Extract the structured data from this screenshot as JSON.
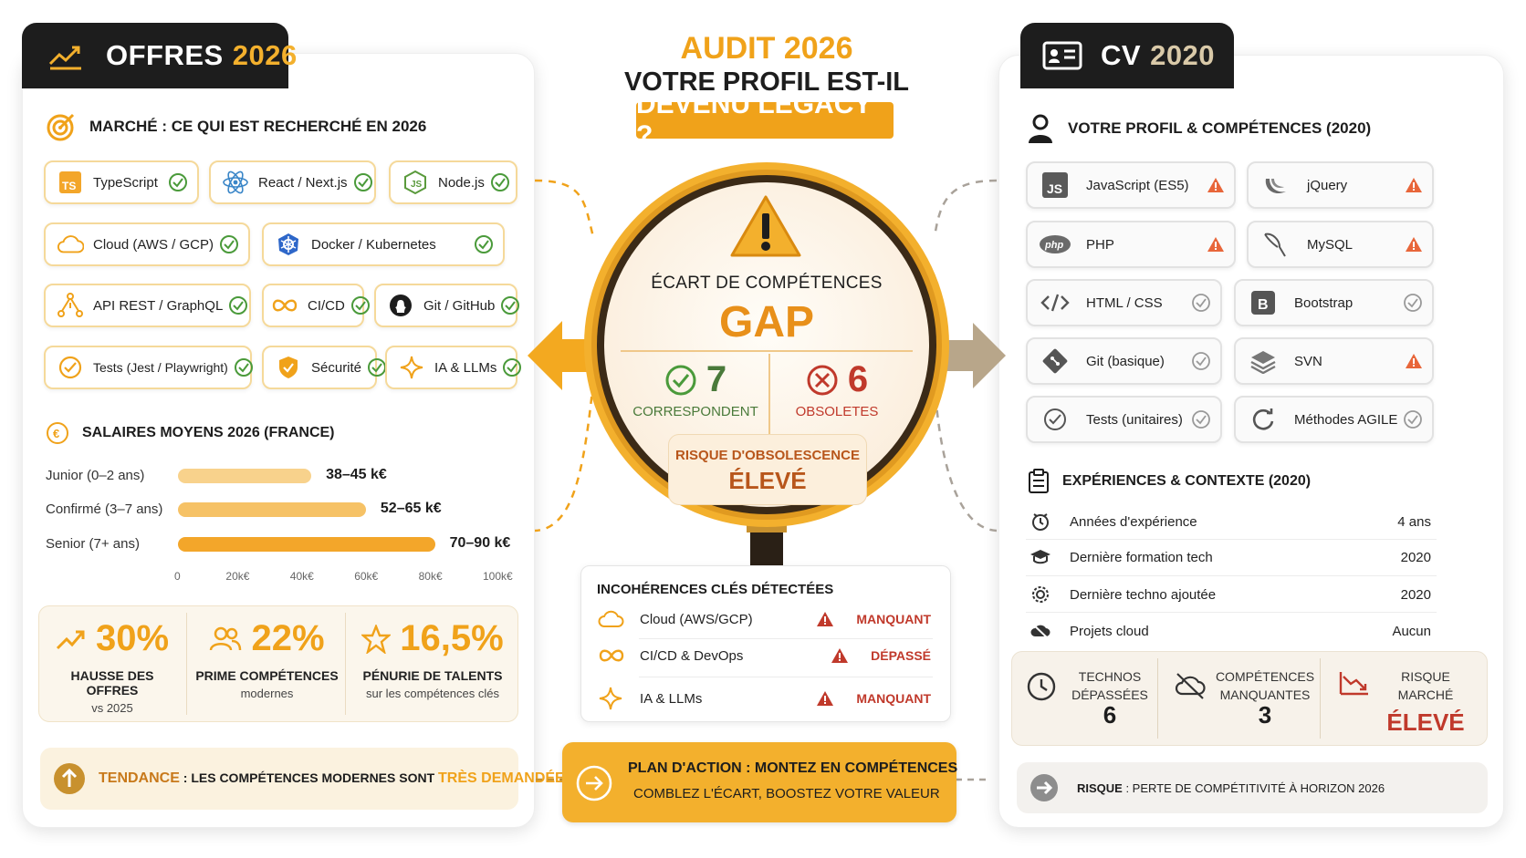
{
  "center": {
    "title_line1": "AUDIT 2026",
    "title_line2": "VOTRE PROFIL EST-IL",
    "title_line3": "DEVENU LEGACY ?",
    "gap_label": "ÉCART DE COMPÉTENCES",
    "gap_word": "GAP",
    "match_count": "7",
    "match_label": "CORRESPONDENT",
    "obsolete_count": "6",
    "obsolete_label": "OBSOLETES",
    "risk_label": "RISQUE D'OBSOLESCENCE",
    "risk_value": "ÉLEVÉ",
    "incoherences_title": "INCOHÉRENCES CLÉS DÉTECTÉES",
    "incoherences": [
      {
        "name": "Cloud (AWS/GCP)",
        "status": "MANQUANT",
        "icon": "cloud-icon"
      },
      {
        "name": "CI/CD & DevOps",
        "status": "DÉPASSÉ",
        "icon": "infinity-icon"
      },
      {
        "name": "IA & LLMs",
        "status": "MANQUANT",
        "icon": "sparkle-icon"
      }
    ],
    "plan_line1": "PLAN D'ACTION : MONTEZ EN COMPÉTENCES",
    "plan_line2": "COMBLEZ L'ÉCART, BOOSTEZ VOTRE VALEUR"
  },
  "left": {
    "tab_word": "OFFRES",
    "tab_year": "2026",
    "market_title": "MARCHÉ : CE QUI EST RECHERCHÉ EN 2026",
    "skills": [
      {
        "label": "TypeScript",
        "icon": "typescript-icon"
      },
      {
        "label": "React / Next.js",
        "icon": "react-icon"
      },
      {
        "label": "Node.js",
        "icon": "nodejs-icon"
      },
      {
        "label": "Cloud (AWS / GCP)",
        "icon": "cloud-icon"
      },
      {
        "label": "Docker / Kubernetes",
        "icon": "kubernetes-icon"
      },
      {
        "label": "API REST / GraphQL",
        "icon": "graphql-icon"
      },
      {
        "label": "CI/CD",
        "icon": "infinity-icon"
      },
      {
        "label": "Git / GitHub",
        "icon": "github-icon"
      },
      {
        "label": "Tests (Jest / Playwright)",
        "icon": "check-circle-icon"
      },
      {
        "label": "Sécurité",
        "icon": "shield-icon"
      },
      {
        "label": "IA & LLMs",
        "icon": "sparkle-icon"
      }
    ],
    "salary_title": "SALAIRES MOYENS 2026 (FRANCE)",
    "salaries": [
      {
        "label": "Junior (0–2 ans)",
        "value": "38–45 k€",
        "mid": 41.5
      },
      {
        "label": "Confirmé (3–7 ans)",
        "value": "52–65 k€",
        "mid": 58.5
      },
      {
        "label": "Senior (7+ ans)",
        "value": "70–90 k€",
        "mid": 80
      }
    ],
    "ticks": [
      "0",
      "20k€",
      "40k€",
      "60k€",
      "80k€",
      "100k€"
    ],
    "stats": [
      {
        "big": "30%",
        "label": "HAUSSE DES OFFRES",
        "sub": "vs 2025",
        "icon": "trend-up-icon"
      },
      {
        "big": "22%",
        "label": "PRIME COMPÉTENCES",
        "sub": "modernes",
        "icon": "people-icon"
      },
      {
        "big": "16,5%",
        "label": "PÉNURIE DE TALENTS",
        "sub": "sur les compétences clés",
        "icon": "star-icon"
      }
    ],
    "trend_prefix": "TENDANCE",
    "trend_text": " : LES COMPÉTENCES MODERNES SONT ",
    "trend_highlight": "TRÈS DEMANDÉES"
  },
  "right": {
    "tab_word": "CV",
    "tab_year": "2020",
    "profile_title": "VOTRE PROFIL & COMPÉTENCES (2020)",
    "skills": [
      {
        "label": "JavaScript (ES5)",
        "status": "warning",
        "icon": "js-icon"
      },
      {
        "label": "jQuery",
        "status": "warning",
        "icon": "jquery-icon"
      },
      {
        "label": "PHP",
        "status": "warning",
        "icon": "php-icon"
      },
      {
        "label": "MySQL",
        "status": "warning",
        "icon": "mysql-icon"
      },
      {
        "label": "HTML / CSS",
        "status": "ok",
        "icon": "code-icon"
      },
      {
        "label": "Bootstrap",
        "status": "ok",
        "icon": "bootstrap-icon"
      },
      {
        "label": "Git (basique)",
        "status": "ok",
        "icon": "git-icon"
      },
      {
        "label": "SVN",
        "status": "warning",
        "icon": "layers-icon"
      },
      {
        "label": "Tests (unitaires)",
        "status": "ok",
        "icon": "check-circle-icon"
      },
      {
        "label": "Méthodes AGILE",
        "status": "ok",
        "icon": "cycle-icon"
      }
    ],
    "exp_title": "EXPÉRIENCES & CONTEXTE (2020)",
    "experiences": [
      {
        "name": "Années d'expérience",
        "value": "4 ans",
        "icon": "clock-icon"
      },
      {
        "name": "Dernière formation tech",
        "value": "2020",
        "icon": "graduation-icon"
      },
      {
        "name": "Dernière techno ajoutée",
        "value": "2020",
        "icon": "gear-icon"
      },
      {
        "name": "Projets cloud",
        "value": "Aucun",
        "icon": "cloud-off-icon"
      }
    ],
    "risk_cols": [
      {
        "label1": "TECHNOS",
        "label2": "DÉPASSÉES",
        "value": "6"
      },
      {
        "label1": "COMPÉTENCES",
        "label2": "MANQUANTES",
        "value": "3"
      },
      {
        "label1": "RISQUE MARCHÉ",
        "label2": "",
        "value": "ÉLEVÉ"
      }
    ],
    "bottom_prefix": "RISQUE",
    "bottom_text": " : PERTE DE COMPÉTITIVITÉ À HORIZON 2026"
  },
  "colors": {
    "accent": "#f0a21a",
    "danger": "#c0392b",
    "ok": "#4a9a3a",
    "dark": "#1d1d1d"
  }
}
